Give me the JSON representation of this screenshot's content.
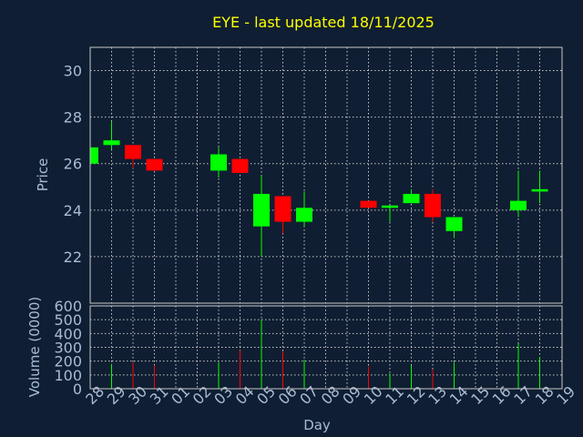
{
  "chart_data": {
    "type": "candlestick",
    "title": "EYE - last updated 18/11/2025",
    "xlabel": "Day",
    "price": {
      "ylabel": "Price",
      "ylim": [
        20,
        31
      ],
      "yticks": [
        22,
        24,
        26,
        28,
        30
      ],
      "grid": true
    },
    "volume": {
      "ylabel": "Volume (0000)",
      "ylim": [
        0,
        600
      ],
      "yticks": [
        0,
        100,
        200,
        300,
        400,
        500,
        600
      ],
      "grid": true
    },
    "x_tick_labels": [
      "28",
      "29",
      "30",
      "31",
      "01",
      "02",
      "03",
      "04",
      "05",
      "06",
      "07",
      "08",
      "09",
      "10",
      "11",
      "12",
      "13",
      "14",
      "15",
      "16",
      "17",
      "18",
      "19"
    ],
    "colors": {
      "up": "#00ff00",
      "down": "#ff0000",
      "background": "#0f1e32",
      "text": "#a8bcd6",
      "title": "#ffff00"
    },
    "candles": [
      {
        "day": "28",
        "open": 26.0,
        "high": 26.7,
        "low": 25.9,
        "close": 26.7
      },
      {
        "day": "29",
        "open": 26.8,
        "high": 27.8,
        "low": 26.6,
        "close": 27.0
      },
      {
        "day": "30",
        "open": 26.8,
        "high": 26.8,
        "low": 25.8,
        "close": 26.2
      },
      {
        "day": "31",
        "open": 26.2,
        "high": 26.2,
        "low": 25.7,
        "close": 25.7
      },
      {
        "day": "03",
        "open": 25.7,
        "high": 26.7,
        "low": 25.4,
        "close": 26.4
      },
      {
        "day": "04",
        "open": 26.2,
        "high": 26.2,
        "low": 25.6,
        "close": 25.6
      },
      {
        "day": "05",
        "open": 23.3,
        "high": 25.5,
        "low": 22.0,
        "close": 24.7
      },
      {
        "day": "06",
        "open": 24.6,
        "high": 24.6,
        "low": 23.0,
        "close": 23.5
      },
      {
        "day": "07",
        "open": 23.5,
        "high": 24.8,
        "low": 23.3,
        "close": 24.1
      },
      {
        "day": "10",
        "open": 24.4,
        "high": 24.4,
        "low": 24.1,
        "close": 24.1
      },
      {
        "day": "11",
        "open": 24.1,
        "high": 24.2,
        "low": 23.5,
        "close": 24.2
      },
      {
        "day": "12",
        "open": 24.3,
        "high": 24.9,
        "low": 24.3,
        "close": 24.7
      },
      {
        "day": "13",
        "open": 24.7,
        "high": 24.9,
        "low": 23.5,
        "close": 23.7
      },
      {
        "day": "14",
        "open": 23.1,
        "high": 23.7,
        "low": 22.8,
        "close": 23.7
      },
      {
        "day": "17",
        "open": 24.0,
        "high": 25.7,
        "low": 23.7,
        "close": 24.4
      },
      {
        "day": "18",
        "open": 24.8,
        "high": 25.7,
        "low": 24.3,
        "close": 24.9
      }
    ],
    "volumes": [
      {
        "day": "29",
        "value": 180,
        "dir": "up"
      },
      {
        "day": "30",
        "value": 190,
        "dir": "down"
      },
      {
        "day": "31",
        "value": 170,
        "dir": "down"
      },
      {
        "day": "03",
        "value": 190,
        "dir": "up"
      },
      {
        "day": "04",
        "value": 280,
        "dir": "down"
      },
      {
        "day": "05",
        "value": 500,
        "dir": "up"
      },
      {
        "day": "06",
        "value": 270,
        "dir": "down"
      },
      {
        "day": "07",
        "value": 210,
        "dir": "up"
      },
      {
        "day": "10",
        "value": 160,
        "dir": "down"
      },
      {
        "day": "11",
        "value": 110,
        "dir": "up"
      },
      {
        "day": "12",
        "value": 170,
        "dir": "up"
      },
      {
        "day": "13",
        "value": 140,
        "dir": "down"
      },
      {
        "day": "14",
        "value": 190,
        "dir": "up"
      },
      {
        "day": "17",
        "value": 330,
        "dir": "up"
      },
      {
        "day": "18",
        "value": 230,
        "dir": "up"
      }
    ]
  }
}
